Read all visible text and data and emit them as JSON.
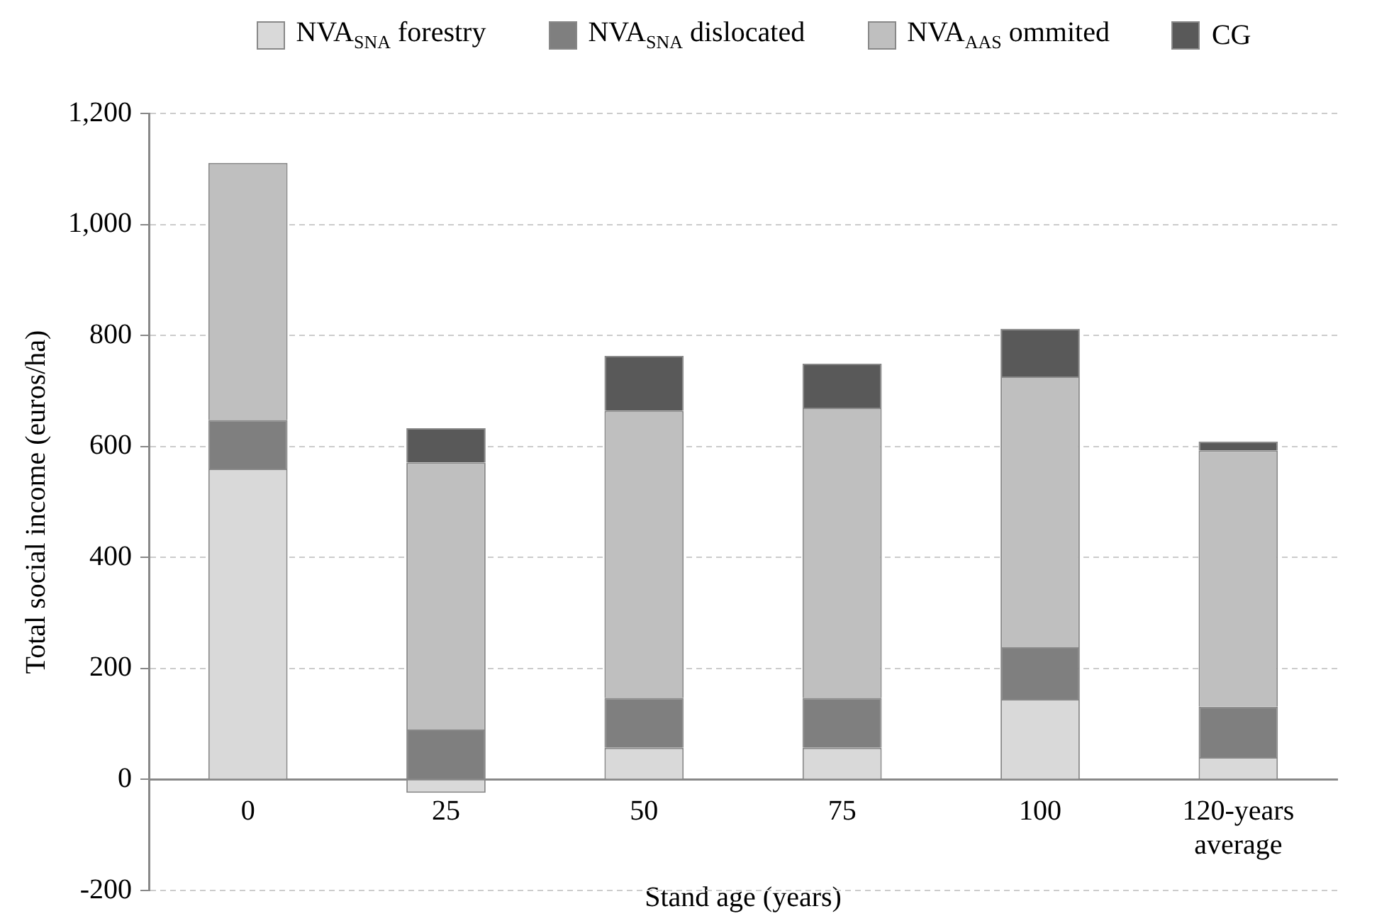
{
  "chart_data": {
    "type": "bar",
    "stacked": true,
    "xlabel": "Stand age (years)",
    "ylabel": "Total social income (euros/ha)",
    "categories": [
      "0",
      "25",
      "50",
      "75",
      "100",
      "120-years average"
    ],
    "series": [
      {
        "name": "NVA$_{SNA}$ forestry",
        "color": "#d9d9d9",
        "values": [
          560,
          -24,
          57,
          57,
          145,
          40
        ]
      },
      {
        "name": "NVA$_{SNA}$ dislocated",
        "color": "#7f7f7f",
        "values": [
          88,
          90,
          90,
          90,
          93,
          91
        ]
      },
      {
        "name": "NVA$_{AAS}$ ommited",
        "color": "#bfbfbf",
        "values": [
          463,
          481,
          517,
          523,
          488,
          462
        ]
      },
      {
        "name": "CG",
        "color": "#595959",
        "values": [
          0,
          62,
          99,
          79,
          86,
          16
        ]
      }
    ],
    "ylim": [
      -200,
      1200
    ],
    "yticks": [
      {
        "value": -200,
        "label": "-200"
      },
      0,
      200,
      400,
      600,
      800,
      {
        "value": 1000,
        "label": "1,000"
      },
      {
        "value": 1200,
        "label": "1,200"
      }
    ],
    "grid": "y",
    "legend": "top"
  }
}
